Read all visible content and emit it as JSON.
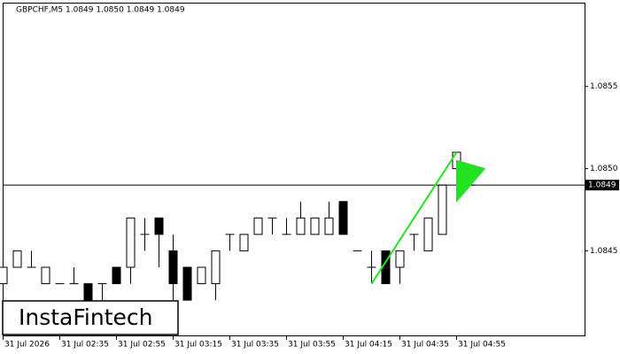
{
  "chart_data": {
    "type": "candlestick",
    "title": "GBPCHF,M5  1.0849 1.0850 1.0849 1.0849",
    "categories": [
      "31 Jul 2026",
      null,
      null,
      null,
      "31 Jul 02:35",
      null,
      null,
      null,
      "31 Jul 02:55",
      null,
      null,
      null,
      "31 Jul 03:15",
      null,
      null,
      null,
      "31 Jul 03:35",
      null,
      null,
      null,
      "31 Jul 03:55",
      null,
      null,
      null,
      "31 Jul 04:15",
      null,
      null,
      null,
      "31 Jul 04:35",
      null,
      null,
      null,
      "31 Jul 04:55",
      null
    ],
    "open": [
      1.0843,
      1.0844,
      1.0844,
      1.0843,
      1.0843,
      1.0843,
      1.0843,
      1.0843,
      1.0844,
      1.0844,
      1.0846,
      1.0847,
      1.0845,
      1.0844,
      1.0843,
      1.0843,
      1.0846,
      1.0845,
      1.0846,
      1.0847,
      1.0846,
      1.0846,
      1.0846,
      1.0846,
      1.0848,
      1.0845,
      1.0844,
      1.0845,
      1.0844,
      1.0846,
      1.0845,
      1.0846,
      1.085,
      1.0849
    ],
    "high": [
      1.0844,
      1.0845,
      1.0845,
      1.0844,
      1.0843,
      1.0844,
      1.0843,
      1.0843,
      1.0844,
      1.0847,
      1.0847,
      1.0847,
      1.0846,
      1.0844,
      1.0844,
      1.0845,
      1.0846,
      1.0846,
      1.0847,
      1.0847,
      1.0847,
      1.0848,
      1.0847,
      1.0848,
      1.0848,
      1.0845,
      1.0845,
      1.0845,
      1.0845,
      1.0846,
      1.0847,
      1.0849,
      1.0851,
      1.085
    ],
    "low": [
      1.08425,
      1.0844,
      1.0844,
      1.0843,
      1.0843,
      1.0843,
      1.0842,
      1.0842,
      1.0843,
      1.0843,
      1.0845,
      1.0844,
      1.0842,
      1.0842,
      1.0843,
      1.0842,
      1.0845,
      1.0845,
      1.0846,
      1.0846,
      1.0846,
      1.0846,
      1.0846,
      1.0846,
      1.0846,
      1.0845,
      1.0843,
      1.0843,
      1.0843,
      1.0845,
      1.0845,
      1.0846,
      1.085,
      1.0849
    ],
    "close": [
      1.0844,
      1.0845,
      1.0844,
      1.0844,
      1.0843,
      1.0843,
      1.0842,
      1.0843,
      1.0843,
      1.0847,
      1.0846,
      1.0846,
      1.0843,
      1.0842,
      1.0844,
      1.0845,
      1.0846,
      1.0846,
      1.0847,
      1.0847,
      1.0846,
      1.0847,
      1.0847,
      1.0847,
      1.0846,
      1.0845,
      1.0844,
      1.0843,
      1.0845,
      1.0846,
      1.0847,
      1.0849,
      1.0851,
      1.0849
    ],
    "up_color": "#ffffff",
    "down_color": "#000000",
    "ylim": [
      1.08398,
      1.08601
    ],
    "yticks": [
      1.0845,
      {
        "value": 1.085,
        "label": "1.0850"
      },
      1.0855
    ],
    "current_price": 1.0849,
    "pattern": {
      "color": "#22e322",
      "pole": {
        "x": [
          26,
          32
        ],
        "y": [
          1.0843,
          1.0851
        ]
      },
      "flag": {
        "x": [
          32,
          32,
          34
        ],
        "y": [
          1.08505,
          1.0848,
          1.085
        ]
      }
    },
    "watermark": "InstaFintech"
  }
}
